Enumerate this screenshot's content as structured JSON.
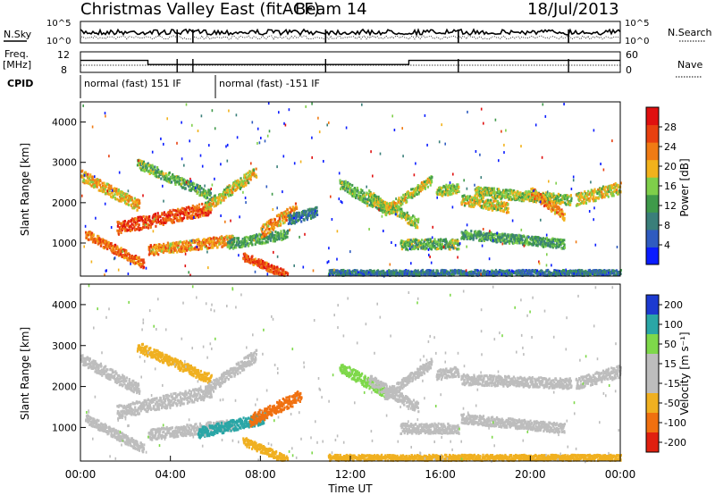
{
  "header": {
    "title": "Christmas Valley East (fitACF)",
    "beam": "Beam 14",
    "date": "18/Jul/2013"
  },
  "noise_panel": {
    "left_label": "N.Sky",
    "right_label": "N.Search",
    "left_ticks": [
      "10^5",
      "10^0"
    ],
    "right_ticks": [
      "10^5",
      "10^0"
    ],
    "gap_hours": [
      4.3,
      5.0,
      10.9,
      16.8,
      21.7
    ]
  },
  "freq_panel": {
    "left_label_1": "Freq.",
    "left_label_2": "[MHz]",
    "right_label": "Nave",
    "left_ticks": [
      "12",
      "8"
    ],
    "right_ticks": [
      "60",
      "0"
    ],
    "freq_steps": [
      {
        "from": 0,
        "to": 3.0,
        "mhz": 10.5
      },
      {
        "from": 3.0,
        "to": 14.6,
        "mhz": 9.3
      },
      {
        "from": 14.6,
        "to": 24,
        "mhz": 10.5
      }
    ]
  },
  "cpid": {
    "label": "CPID",
    "segments": [
      {
        "from": 0,
        "to": 6.0,
        "text": "normal (fast) 151 IF"
      },
      {
        "from": 6.0,
        "to": 24,
        "text": "normal (fast) -151 IF"
      }
    ]
  },
  "chart_data": [
    {
      "type": "heatmap",
      "name": "power",
      "ylabel": "Slant Range [km]",
      "xlabel": "Time UT",
      "xlim": [
        0,
        24
      ],
      "ylim": [
        180,
        4500
      ],
      "yticks": [
        "1000",
        "2000",
        "3000",
        "4000"
      ],
      "colorbar": {
        "label": "Power [dB]",
        "ticks": [
          "4",
          "8",
          "12",
          "16",
          "20",
          "24",
          "28"
        ],
        "colors": [
          "#0a1cff",
          "#2f5bc0",
          "#3a7f7a",
          "#3f9a4a",
          "#7fcf4a",
          "#f2b21c",
          "#f07b14",
          "#e84010",
          "#e01010"
        ]
      },
      "bands": [
        {
          "t": [
            0.0,
            2.6
          ],
          "r": [
            2700,
            1950
          ],
          "w": 280,
          "v": 20
        },
        {
          "t": [
            0.2,
            2.8
          ],
          "r": [
            1250,
            500
          ],
          "w": 220,
          "v": 24
        },
        {
          "t": [
            1.6,
            5.8
          ],
          "r": [
            1400,
            1900
          ],
          "w": 320,
          "v": 26
        },
        {
          "t": [
            2.5,
            5.8
          ],
          "r": [
            3000,
            2200
          ],
          "w": 240,
          "v": 14
        },
        {
          "t": [
            3.0,
            6.8
          ],
          "r": [
            850,
            1100
          ],
          "w": 260,
          "v": 22
        },
        {
          "t": [
            5.5,
            7.8
          ],
          "r": [
            1900,
            2800
          ],
          "w": 280,
          "v": 18
        },
        {
          "t": [
            6.5,
            9.2
          ],
          "r": [
            1000,
            1250
          ],
          "w": 250,
          "v": 12
        },
        {
          "t": [
            8.0,
            9.6
          ],
          "r": [
            1300,
            1900
          ],
          "w": 300,
          "v": 22
        },
        {
          "t": [
            7.2,
            9.2
          ],
          "r": [
            700,
            220
          ],
          "w": 200,
          "v": 26
        },
        {
          "t": [
            9.2,
            10.5
          ],
          "r": [
            1600,
            1800
          ],
          "w": 260,
          "v": 8
        },
        {
          "t": [
            11.5,
            13.5
          ],
          "r": [
            2500,
            1900
          ],
          "w": 280,
          "v": 14
        },
        {
          "t": [
            12.8,
            15.0
          ],
          "r": [
            2200,
            1500
          ],
          "w": 260,
          "v": 16
        },
        {
          "t": [
            13.5,
            15.6
          ],
          "r": [
            1800,
            2600
          ],
          "w": 240,
          "v": 18
        },
        {
          "t": [
            14.2,
            16.8
          ],
          "r": [
            1000,
            1000
          ],
          "w": 250,
          "v": 14
        },
        {
          "t": [
            15.8,
            16.8
          ],
          "r": [
            2300,
            2400
          ],
          "w": 260,
          "v": 16
        },
        {
          "t": [
            16.9,
            19.0
          ],
          "r": [
            2100,
            1900
          ],
          "w": 250,
          "v": 18
        },
        {
          "t": [
            17.5,
            21.8
          ],
          "r": [
            2300,
            2100
          ],
          "w": 250,
          "v": 16
        },
        {
          "t": [
            16.9,
            21.5
          ],
          "r": [
            1250,
            1000
          ],
          "w": 230,
          "v": 12
        },
        {
          "t": [
            20.0,
            21.5
          ],
          "r": [
            2300,
            1700
          ],
          "w": 240,
          "v": 22
        },
        {
          "t": [
            22.0,
            24.0
          ],
          "r": [
            2100,
            2400
          ],
          "w": 300,
          "v": 18
        },
        {
          "t": [
            11.0,
            24.0
          ],
          "r": [
            280,
            280
          ],
          "w": 160,
          "v": 8
        }
      ]
    },
    {
      "type": "heatmap",
      "name": "velocity",
      "ylabel": "Slant Range [km]",
      "xlabel": "Time UT",
      "xlim": [
        0,
        24
      ],
      "ylim": [
        180,
        4500
      ],
      "xticks": [
        "00:00",
        "04:00",
        "08:00",
        "12:00",
        "16:00",
        "20:00",
        "00:00"
      ],
      "yticks": [
        "1000",
        "2000",
        "3000",
        "4000"
      ],
      "colorbar": {
        "label": "Velocity [m s⁻¹]",
        "ticks": [
          "200",
          "100",
          "50",
          "15",
          "-15",
          "-50",
          "-100",
          "-200"
        ],
        "colors": [
          "#1c3ad0",
          "#2aa6a6",
          "#7ed84a",
          "#bdbdbd",
          "#bdbdbd",
          "#f0b020",
          "#f07010",
          "#e02010"
        ]
      },
      "bands": [
        {
          "t": [
            0.0,
            2.6
          ],
          "r": [
            2700,
            1950
          ],
          "w": 280,
          "v": 0
        },
        {
          "t": [
            0.2,
            2.8
          ],
          "r": [
            1250,
            500
          ],
          "w": 220,
          "v": 0
        },
        {
          "t": [
            1.6,
            5.8
          ],
          "r": [
            1400,
            1900
          ],
          "w": 320,
          "v": 0
        },
        {
          "t": [
            2.5,
            5.8
          ],
          "r": [
            3000,
            2200
          ],
          "w": 240,
          "v": -40
        },
        {
          "t": [
            3.0,
            6.8
          ],
          "r": [
            850,
            1100
          ],
          "w": 260,
          "v": 0
        },
        {
          "t": [
            5.5,
            7.8
          ],
          "r": [
            1900,
            2800
          ],
          "w": 280,
          "v": 0
        },
        {
          "t": [
            5.2,
            8.2
          ],
          "r": [
            900,
            1250
          ],
          "w": 260,
          "v": 60
        },
        {
          "t": [
            7.5,
            9.8
          ],
          "r": [
            1200,
            1800
          ],
          "w": 300,
          "v": -70
        },
        {
          "t": [
            7.2,
            9.2
          ],
          "r": [
            700,
            220
          ],
          "w": 200,
          "v": -40
        },
        {
          "t": [
            11.5,
            13.5
          ],
          "r": [
            2500,
            1900
          ],
          "w": 280,
          "v": 30
        },
        {
          "t": [
            12.8,
            15.0
          ],
          "r": [
            2200,
            1500
          ],
          "w": 260,
          "v": 0
        },
        {
          "t": [
            13.5,
            15.6
          ],
          "r": [
            1800,
            2600
          ],
          "w": 240,
          "v": 0
        },
        {
          "t": [
            14.2,
            16.8
          ],
          "r": [
            1000,
            1000
          ],
          "w": 250,
          "v": 0
        },
        {
          "t": [
            15.8,
            16.8
          ],
          "r": [
            2300,
            2400
          ],
          "w": 260,
          "v": 0
        },
        {
          "t": [
            16.9,
            21.8
          ],
          "r": [
            2200,
            2100
          ],
          "w": 250,
          "v": 0
        },
        {
          "t": [
            16.9,
            21.5
          ],
          "r": [
            1250,
            1000
          ],
          "w": 230,
          "v": 0
        },
        {
          "t": [
            22.0,
            24.0
          ],
          "r": [
            2100,
            2400
          ],
          "w": 300,
          "v": 0
        },
        {
          "t": [
            11.0,
            24.0
          ],
          "r": [
            280,
            280
          ],
          "w": 160,
          "v": -40
        }
      ]
    }
  ]
}
